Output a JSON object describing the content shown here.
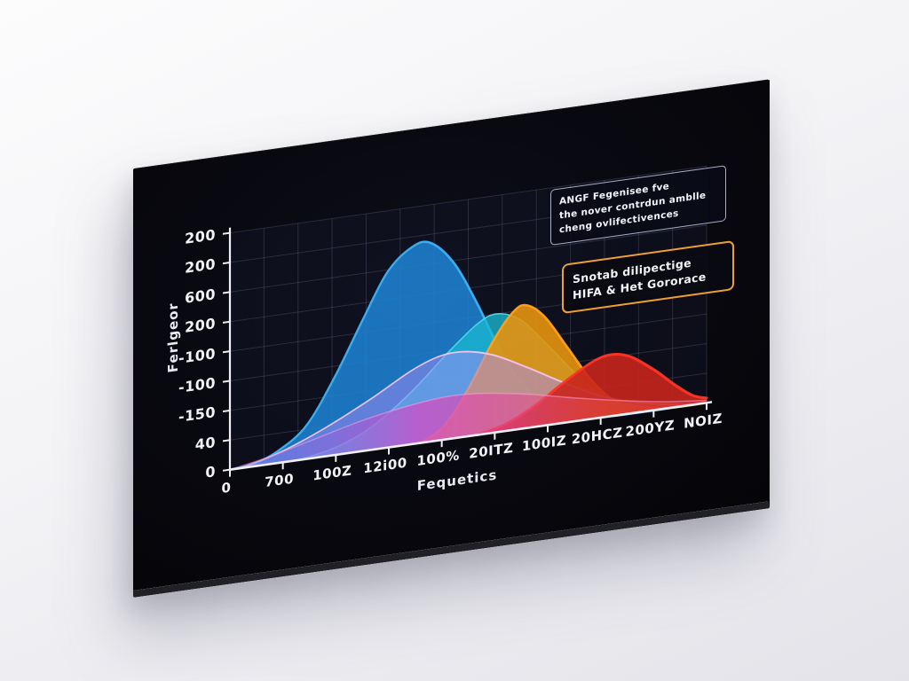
{
  "scene": {
    "description_label": "wall-mounted dark display showing frequency response chart"
  },
  "chart_data": {
    "type": "area",
    "title": "",
    "xlabel": "Fequetics",
    "ylabel": "Ferlgeor",
    "x_tick_labels": [
      "0",
      "700",
      "100Z",
      "12i00",
      "100%",
      "20ITZ",
      "100IZ",
      "20HCZ",
      "200YZ",
      "NOIZ"
    ],
    "y_tick_labels": [
      "200",
      "200",
      "600",
      "200",
      "-100",
      "-100",
      "-150",
      "40",
      "0"
    ],
    "grid": true,
    "legend": false,
    "axis_color": "#f0f0f4",
    "grid_color": "rgba(155,165,205,0.20)",
    "plot_bg": "rgba(22,26,48,0.35)",
    "series": [
      {
        "name": "blue-bell",
        "fill": "#1e82d2",
        "fill_opacity": 0.88,
        "stroke": "#3fb2f5",
        "stroke_width": 2.5,
        "points": [
          [
            0,
            0
          ],
          [
            0.05,
            0.01
          ],
          [
            0.1,
            0.05
          ],
          [
            0.16,
            0.14
          ],
          [
            0.22,
            0.33
          ],
          [
            0.28,
            0.56
          ],
          [
            0.33,
            0.74
          ],
          [
            0.38,
            0.83
          ],
          [
            0.42,
            0.84
          ],
          [
            0.47,
            0.74
          ],
          [
            0.52,
            0.55
          ],
          [
            0.57,
            0.33
          ],
          [
            0.62,
            0.17
          ],
          [
            0.67,
            0.07
          ],
          [
            0.72,
            0.02
          ],
          [
            0.8,
            0
          ],
          [
            1,
            0
          ]
        ]
      },
      {
        "name": "cyan-bell",
        "fill": "#19b9d2",
        "fill_opacity": 0.78,
        "stroke": "#4fdbe9",
        "stroke_width": 1.6,
        "points": [
          [
            0.14,
            0
          ],
          [
            0.22,
            0.03
          ],
          [
            0.3,
            0.1
          ],
          [
            0.38,
            0.22
          ],
          [
            0.46,
            0.37
          ],
          [
            0.52,
            0.47
          ],
          [
            0.56,
            0.5
          ],
          [
            0.61,
            0.46
          ],
          [
            0.67,
            0.33
          ],
          [
            0.73,
            0.19
          ],
          [
            0.79,
            0.08
          ],
          [
            0.85,
            0.02
          ],
          [
            0.91,
            0
          ],
          [
            1,
            0
          ]
        ]
      },
      {
        "name": "orange-bell",
        "fill": "#e6930e",
        "fill_opacity": 0.9,
        "stroke": "#ffa21f",
        "stroke_width": 2.5,
        "points": [
          [
            0.4,
            0
          ],
          [
            0.45,
            0.06
          ],
          [
            0.5,
            0.2
          ],
          [
            0.55,
            0.38
          ],
          [
            0.59,
            0.49
          ],
          [
            0.62,
            0.52
          ],
          [
            0.66,
            0.46
          ],
          [
            0.71,
            0.31
          ],
          [
            0.76,
            0.16
          ],
          [
            0.81,
            0.06
          ],
          [
            0.87,
            0.02
          ],
          [
            0.93,
            0
          ],
          [
            1,
            0
          ]
        ]
      },
      {
        "name": "lavender-bell",
        "fill": "#a78bfa",
        "fill_opacity": 0.5,
        "stroke": "#f5c4ee",
        "stroke_width": 1.8,
        "points": [
          [
            0.02,
            0
          ],
          [
            0.1,
            0.04
          ],
          [
            0.2,
            0.12
          ],
          [
            0.3,
            0.22
          ],
          [
            0.38,
            0.31
          ],
          [
            0.44,
            0.355
          ],
          [
            0.49,
            0.36
          ],
          [
            0.55,
            0.33
          ],
          [
            0.62,
            0.26
          ],
          [
            0.7,
            0.17
          ],
          [
            0.78,
            0.09
          ],
          [
            0.86,
            0.04
          ],
          [
            0.94,
            0.01
          ],
          [
            1,
            0
          ]
        ]
      },
      {
        "name": "red-bell",
        "fill": "#c8251d",
        "fill_opacity": 0.9,
        "stroke": "#ff3526",
        "stroke_width": 3,
        "points": [
          [
            0.52,
            0
          ],
          [
            0.58,
            0.03
          ],
          [
            0.64,
            0.09
          ],
          [
            0.7,
            0.17
          ],
          [
            0.76,
            0.24
          ],
          [
            0.8,
            0.26
          ],
          [
            0.84,
            0.24
          ],
          [
            0.89,
            0.17
          ],
          [
            0.93,
            0.1
          ],
          [
            0.97,
            0.04
          ],
          [
            1,
            0.02
          ]
        ]
      },
      {
        "name": "magenta-band",
        "fill": "gradient",
        "fill_opacity": 0.82,
        "stroke": "rgba(255,160,225,0.55)",
        "stroke_width": 1.5,
        "gradient_stops": [
          {
            "offset": "0%",
            "color": "#4f7df0",
            "opacity": 0.3
          },
          {
            "offset": "40%",
            "color": "#e044c4",
            "opacity": 0.85
          },
          {
            "offset": "60%",
            "color": "#e0489a",
            "opacity": 0.7
          },
          {
            "offset": "80%",
            "color": "#f05438",
            "opacity": 0.5
          },
          {
            "offset": "100%",
            "color": "#f04848",
            "opacity": 0.4
          }
        ],
        "points": [
          [
            0,
            0
          ],
          [
            0.08,
            0.03
          ],
          [
            0.18,
            0.08
          ],
          [
            0.28,
            0.13
          ],
          [
            0.38,
            0.165
          ],
          [
            0.46,
            0.18
          ],
          [
            0.54,
            0.17
          ],
          [
            0.63,
            0.14
          ],
          [
            0.72,
            0.1
          ],
          [
            0.82,
            0.06
          ],
          [
            0.91,
            0.03
          ],
          [
            1,
            0.01
          ]
        ]
      }
    ],
    "annotations": [
      {
        "border": "#a8aec6",
        "lines": [
          "ANGF Fegenisee fve",
          "the nover contrdun amblle",
          "cheng ovlifectivences"
        ]
      },
      {
        "border": "#f0a030",
        "lines": [
          "Snotab dilipectige",
          "HIFA & Het Gororace"
        ]
      }
    ]
  }
}
